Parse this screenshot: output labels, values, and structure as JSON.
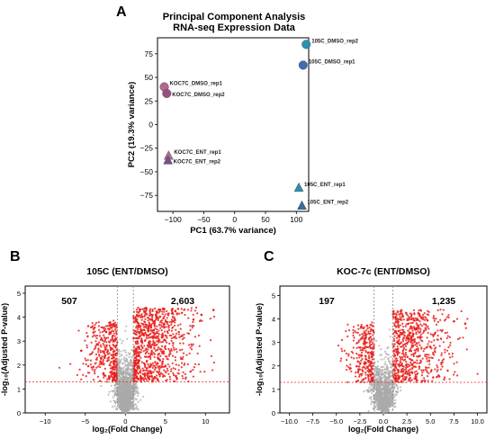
{
  "chart_data": [
    {
      "panel_label": "A",
      "type": "scatter",
      "title": "Principal Component Analysis",
      "subtitle": "RNA-seq Expression Data",
      "xlabel": "PC1 (63.7% variance)",
      "ylabel": "PC2 (19.3% variance)",
      "xlim": [
        -125,
        120
      ],
      "ylim": [
        -92,
        92
      ],
      "xticks": [
        -100,
        -50,
        0,
        50,
        100
      ],
      "xtick_labels": [
        "−100",
        "−50",
        "0",
        "50",
        "100"
      ],
      "yticks": [
        -75,
        -50,
        -25,
        0,
        25,
        50,
        75
      ],
      "ytick_labels": [
        "−75",
        "−50",
        "−25",
        "0",
        "25",
        "50",
        "75"
      ],
      "grid": false,
      "points": [
        {
          "label": "105C_DMSO_rep2",
          "x": 116,
          "y": 85,
          "marker": "circle",
          "color": "#2b8fb4"
        },
        {
          "label": "105C_DMSO_rep1",
          "x": 111,
          "y": 63,
          "marker": "circle",
          "color": "#3c6fb8"
        },
        {
          "label": "KOC7C_DMSO_rep1",
          "x": -114,
          "y": 40,
          "marker": "circle",
          "color": "#b36890"
        },
        {
          "label": "KOC7C_DMSO_rep2",
          "x": -110,
          "y": 33,
          "marker": "circle",
          "color": "#9a4f84"
        },
        {
          "label": "KOC7C_ENT_rep1",
          "x": -107,
          "y": -33,
          "marker": "triangle",
          "color": "#b26a9c"
        },
        {
          "label": "KOC7C_ENT_rep2",
          "x": -108,
          "y": -38,
          "marker": "triangle",
          "color": "#7a4e8c"
        },
        {
          "label": "105C_ENT_rep1",
          "x": 104,
          "y": -67,
          "marker": "triangle",
          "color": "#2b8fb4"
        },
        {
          "label": "105C_ENT_rep2",
          "x": 109,
          "y": -86,
          "marker": "triangle",
          "color": "#3a6aa0"
        }
      ]
    },
    {
      "panel_label": "B",
      "type": "scatter",
      "title": "105C (ENT/DMSO)",
      "xlabel": "log₂(Fold Change)",
      "ylabel": "-log₁₀(Adjusted P-value)",
      "xlim": [
        -12.5,
        13
      ],
      "ylim": [
        0,
        5.3
      ],
      "xticks": [
        -10,
        -5,
        0,
        5,
        10
      ],
      "xtick_labels": [
        "−10",
        "−5",
        "0",
        "5",
        "10"
      ],
      "yticks": [
        0,
        1,
        2,
        3,
        4,
        5
      ],
      "ytick_labels": [
        "0",
        "1",
        "2",
        "3",
        "4",
        "5"
      ],
      "fc_threshold": [
        -1,
        1
      ],
      "pval_threshold": 1.301,
      "down_count": "507",
      "up_count": "2,603",
      "colors": {
        "significant": "#e8201c",
        "not_significant": "#a9a9a9"
      },
      "spread": {
        "down_min": -6,
        "up_max": 10,
        "outliers_up": [
          [
            11,
            4.3
          ],
          [
            9.5,
            4.1
          ],
          [
            8.5,
            3.9
          ]
        ],
        "outliers_down": [
          [
            -5.5,
            2.6
          ]
        ]
      }
    },
    {
      "panel_label": "C",
      "type": "scatter",
      "title": "KOC-7c (ENT/DMSO)",
      "xlabel": "log₂(Fold Change)",
      "ylabel": "-log₁₀(Adjusted P-value)",
      "xlim": [
        -11,
        11
      ],
      "ylim": [
        0,
        5.4
      ],
      "xticks": [
        -10,
        -7.5,
        -5,
        -2.5,
        0,
        2.5,
        5,
        7.5,
        10
      ],
      "xtick_labels": [
        "−10.0",
        "−7.5",
        "−5.0",
        "−2.5",
        "0.0",
        "2.5",
        "5.0",
        "7.5",
        "10.0"
      ],
      "yticks": [
        0,
        1,
        2,
        3,
        4,
        5
      ],
      "ytick_labels": [
        "0",
        "1",
        "2",
        "3",
        "4",
        "5"
      ],
      "fc_threshold": [
        -1,
        1
      ],
      "pval_threshold": 1.301,
      "down_count": "197",
      "up_count": "1,235",
      "colors": {
        "significant": "#e8201c",
        "not_significant": "#a9a9a9"
      },
      "spread": {
        "down_min": -4.5,
        "up_max": 8,
        "outliers_up": [
          [
            8.7,
            3.8
          ],
          [
            7.5,
            3.9
          ]
        ],
        "outliers_down": [
          [
            -3.5,
            1.9
          ]
        ]
      }
    }
  ]
}
